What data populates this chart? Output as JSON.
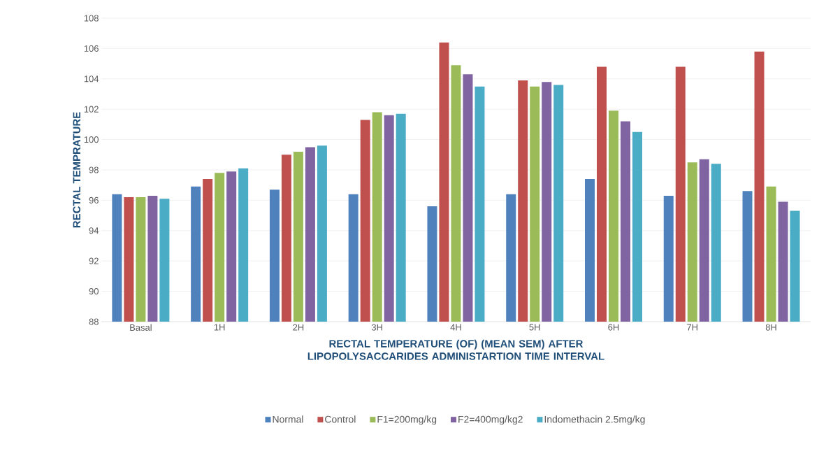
{
  "chart_data": {
    "type": "bar",
    "xlabel": "RECTAL TEMPERATURE (OF)  (MEAN SEM) AFTER  LIPOPOLYSACCARIDES ADMINISTARTION TIME INTERVAL",
    "ylabel": "RECTAL TEMPRATURE",
    "categories": [
      "Basal",
      "1H",
      "2H",
      "3H",
      "4H",
      "5H",
      "6H",
      "7H",
      "8H"
    ],
    "series": [
      {
        "name": "Normal",
        "color": "#4f81bd",
        "values": [
          96.4,
          96.9,
          96.7,
          96.4,
          95.6,
          96.4,
          97.4,
          96.3,
          96.6
        ]
      },
      {
        "name": "Control",
        "color": "#c0504d",
        "values": [
          96.2,
          97.4,
          99.0,
          101.3,
          106.4,
          103.9,
          104.8,
          104.8,
          105.8
        ]
      },
      {
        "name": "F1=200mg/kg",
        "color": "#9bbb59",
        "values": [
          96.2,
          97.8,
          99.2,
          101.8,
          104.9,
          103.5,
          101.9,
          98.5,
          96.9
        ]
      },
      {
        "name": "F2=400mg/kg2",
        "color": "#8064a2",
        "values": [
          96.3,
          97.9,
          99.5,
          101.6,
          104.3,
          103.8,
          101.2,
          98.7,
          95.9
        ]
      },
      {
        "name": "Indomethacin 2.5mg/kg",
        "color": "#4bacc6",
        "values": [
          96.1,
          98.1,
          99.6,
          101.7,
          103.5,
          103.6,
          100.5,
          98.4,
          95.3
        ]
      }
    ],
    "ylim": [
      88,
      108
    ],
    "yticks": [
      88,
      90,
      92,
      94,
      96,
      98,
      100,
      102,
      104,
      106,
      108
    ],
    "grid": "y",
    "legend": "bottom"
  }
}
